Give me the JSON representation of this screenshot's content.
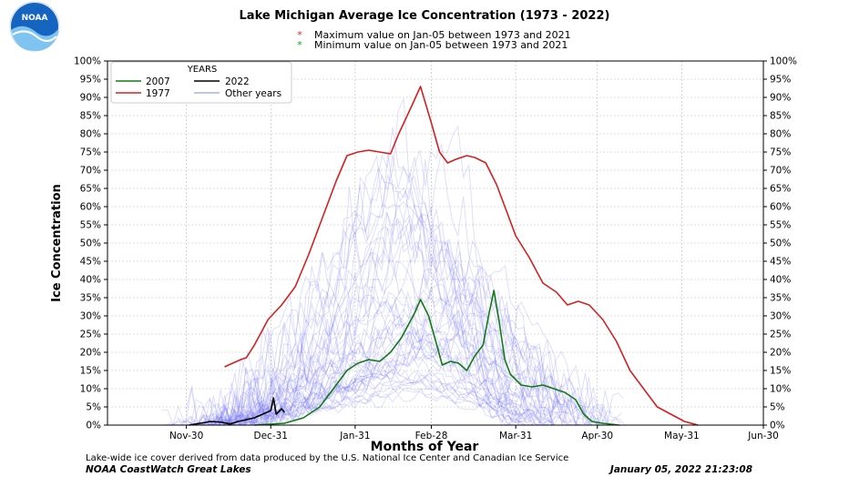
{
  "header": {
    "title": "Lake Michigan Average Ice Concentration (1973 - 2022)",
    "note_max": "Maximum value on Jan-05 between 1973 and 2021",
    "note_min": "Minimum  value on Jan-05 between 1973 and 2021",
    "note_max_marker": "*",
    "note_min_marker": "*",
    "note_max_color": "#e02020",
    "note_min_color": "#1a9a1a"
  },
  "logo": {
    "text": "NOAA",
    "color": "#1a5fb4"
  },
  "footer": {
    "source": "Lake-wide ice cover derived from data produced by the U.S. National Ice Center and Canadian Ice Service",
    "org": "NOAA CoastWatch Great Lakes",
    "timestamp": "January 05, 2022 21:23:08"
  },
  "chart_data": {
    "type": "line",
    "xlabel": "Months of Year",
    "ylabel": "Ice Concentration",
    "x_ticks": [
      "Nov-30",
      "Dec-31",
      "Jan-31",
      "Feb-28",
      "Mar-31",
      "Apr-30",
      "May-31",
      "Jun-30"
    ],
    "y_ticks": [
      "0%",
      "5%",
      "10%",
      "15%",
      "20%",
      "25%",
      "30%",
      "35%",
      "40%",
      "45%",
      "50%",
      "55%",
      "60%",
      "65%",
      "70%",
      "75%",
      "80%",
      "85%",
      "90%",
      "95%",
      "100%"
    ],
    "xlim": [
      "Nov-01",
      "Jun-30"
    ],
    "ylim": [
      0,
      100
    ],
    "grid": true,
    "legend": {
      "title": "YEARS",
      "placement": "top-left"
    },
    "series": [
      {
        "name": "2007",
        "color": "#127a12",
        "points": [
          [
            "Dec-25",
            0
          ],
          [
            "Jan-05",
            0.5
          ],
          [
            "Jan-12",
            2
          ],
          [
            "Jan-18",
            5
          ],
          [
            "Jan-24",
            11
          ],
          [
            "Jan-28",
            15
          ],
          [
            "Feb-01",
            17
          ],
          [
            "Feb-05",
            18
          ],
          [
            "Feb-09",
            17.5
          ],
          [
            "Feb-13",
            20
          ],
          [
            "Feb-17",
            24
          ],
          [
            "Feb-22",
            31
          ],
          [
            "Feb-24",
            34.5
          ],
          [
            "Feb-27",
            30
          ],
          [
            "Mar-02",
            22
          ],
          [
            "Mar-04",
            16.5
          ],
          [
            "Mar-07",
            17.5
          ],
          [
            "Mar-10",
            17
          ],
          [
            "Mar-13",
            15
          ],
          [
            "Mar-16",
            19
          ],
          [
            "Mar-19",
            22
          ],
          [
            "Mar-21",
            30
          ],
          [
            "Mar-23",
            37
          ],
          [
            "Mar-25",
            28
          ],
          [
            "Mar-27",
            18
          ],
          [
            "Mar-29",
            14
          ],
          [
            "Apr-02",
            11
          ],
          [
            "Apr-06",
            10.5
          ],
          [
            "Apr-10",
            11
          ],
          [
            "Apr-14",
            10
          ],
          [
            "Apr-18",
            9
          ],
          [
            "Apr-22",
            7
          ],
          [
            "Apr-25",
            3
          ],
          [
            "Apr-28",
            1
          ],
          [
            "May-02",
            0.5
          ],
          [
            "May-08",
            0
          ]
        ]
      },
      {
        "name": "1977",
        "color": "#d42020",
        "points": [
          [
            "Dec-14",
            16
          ],
          [
            "Dec-17",
            17
          ],
          [
            "Dec-20",
            18
          ],
          [
            "Dec-22",
            18.5
          ],
          [
            "Dec-25",
            22
          ],
          [
            "Dec-30",
            29
          ],
          [
            "Jan-04",
            33
          ],
          [
            "Jan-09",
            38
          ],
          [
            "Jan-14",
            47
          ],
          [
            "Jan-19",
            57
          ],
          [
            "Jan-24",
            67
          ],
          [
            "Jan-28",
            74
          ],
          [
            "Feb-01",
            75
          ],
          [
            "Feb-05",
            75.5
          ],
          [
            "Feb-09",
            75
          ],
          [
            "Feb-13",
            74.5
          ],
          [
            "Feb-16",
            80
          ],
          [
            "Feb-21",
            88
          ],
          [
            "Feb-24",
            93
          ],
          [
            "Feb-28",
            83
          ],
          [
            "Mar-03",
            75
          ],
          [
            "Mar-06",
            72
          ],
          [
            "Mar-09",
            73
          ],
          [
            "Mar-13",
            74
          ],
          [
            "Mar-16",
            73.5
          ],
          [
            "Mar-20",
            72
          ],
          [
            "Mar-24",
            66
          ],
          [
            "Mar-28",
            58
          ],
          [
            "Mar-31",
            52
          ],
          [
            "Apr-05",
            46
          ],
          [
            "Apr-10",
            39
          ],
          [
            "Apr-15",
            36.5
          ],
          [
            "Apr-19",
            33
          ],
          [
            "Apr-23",
            34
          ],
          [
            "Apr-27",
            33
          ],
          [
            "May-02",
            29
          ],
          [
            "May-07",
            23
          ],
          [
            "May-12",
            15
          ],
          [
            "May-17",
            10
          ],
          [
            "May-22",
            5
          ],
          [
            "May-27",
            3
          ],
          [
            "Jun-01",
            1
          ],
          [
            "Jun-06",
            0
          ]
        ]
      },
      {
        "name": "2022",
        "color": "#000000",
        "points": [
          [
            "Dec-01",
            0
          ],
          [
            "Dec-05",
            0.5
          ],
          [
            "Dec-09",
            1
          ],
          [
            "Dec-13",
            0.8
          ],
          [
            "Dec-16",
            0.3
          ],
          [
            "Dec-19",
            1
          ],
          [
            "Dec-22",
            1.5
          ],
          [
            "Dec-25",
            2
          ],
          [
            "Dec-28",
            3
          ],
          [
            "Dec-31",
            4
          ],
          [
            "Jan-01",
            7.5
          ],
          [
            "Jan-02",
            3
          ],
          [
            "Jan-04",
            4.5
          ],
          [
            "Jan-05",
            3.5
          ]
        ]
      },
      {
        "name": "Other years",
        "color": "#8888ee",
        "points": []
      }
    ]
  }
}
